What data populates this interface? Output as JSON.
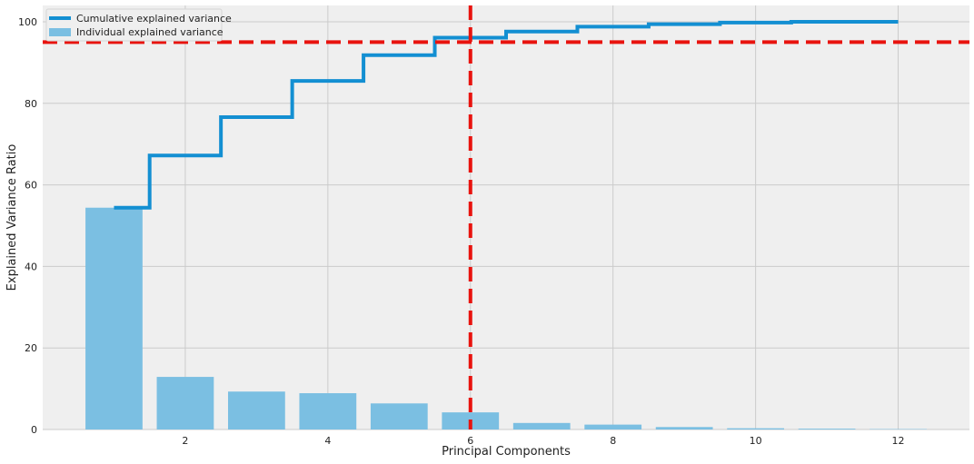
{
  "chart_data": {
    "type": "bar",
    "xlabel": "Principal Components",
    "ylabel": "Explained Variance Ratio",
    "xlim": [
      0.0,
      13.0
    ],
    "ylim": [
      0,
      104
    ],
    "xticks": [
      2,
      4,
      6,
      8,
      10,
      12
    ],
    "yticks": [
      0,
      20,
      40,
      60,
      80,
      100
    ],
    "grid": true,
    "legend_position": "top-left",
    "legend": [
      "Cumulative explained variance",
      "Individual explained variance"
    ],
    "series": [
      {
        "name": "Individual explained variance",
        "type": "bar",
        "color": "#7bbfe2",
        "x": [
          1,
          2,
          3,
          4,
          5,
          6,
          7,
          8,
          9,
          10,
          11,
          12
        ],
        "values": [
          54.4,
          12.9,
          9.3,
          8.9,
          6.4,
          4.2,
          1.6,
          1.2,
          0.6,
          0.3,
          0.2,
          0.1
        ]
      },
      {
        "name": "Cumulative explained variance",
        "type": "step",
        "color": "#138fd2",
        "x": [
          1,
          2,
          3,
          4,
          5,
          6,
          7,
          8,
          9,
          10,
          11,
          12
        ],
        "values": [
          54.4,
          67.2,
          76.6,
          85.5,
          91.8,
          96.1,
          97.6,
          98.8,
          99.4,
          99.8,
          100.0,
          100.0
        ]
      }
    ],
    "reference_lines": [
      {
        "orientation": "horizontal",
        "value": 95,
        "color": "#e8130e",
        "style": "dashed"
      },
      {
        "orientation": "vertical",
        "value": 6,
        "color": "#e8130e",
        "style": "dashed"
      }
    ],
    "colors": {
      "background": "#efefef",
      "grid": "#cbcbcb"
    }
  }
}
